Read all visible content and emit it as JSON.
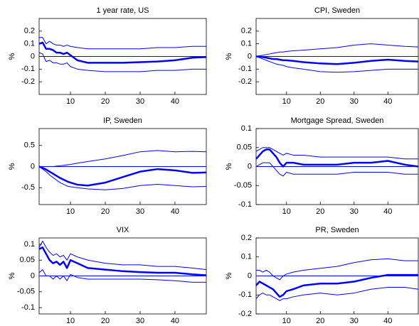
{
  "chart_data": [
    {
      "type": "line",
      "title": "1 year rate, US",
      "ylabel": "%",
      "x": [
        1,
        2,
        3,
        4,
        5,
        6,
        7,
        8,
        9,
        10,
        12,
        15,
        20,
        25,
        30,
        35,
        40,
        45,
        49
      ],
      "series": [
        {
          "color": "#0000ff",
          "linewidth": 2.5,
          "values": [
            0.1,
            0.11,
            0.06,
            0.06,
            0.05,
            0.03,
            0.03,
            0.02,
            0.03,
            0.01,
            -0.03,
            -0.05,
            -0.05,
            -0.05,
            -0.045,
            -0.04,
            -0.03,
            -0.01,
            -0.005
          ]
        },
        {
          "color": "#0000ff",
          "linewidth": 1,
          "values": [
            0.15,
            0.15,
            0.1,
            0.12,
            0.1,
            0.09,
            0.09,
            0.08,
            0.09,
            0.08,
            0.07,
            0.06,
            0.06,
            0.06,
            0.06,
            0.07,
            0.07,
            0.08,
            0.08
          ]
        },
        {
          "color": "#0000ff",
          "linewidth": 1,
          "values": [
            0.03,
            0.02,
            -0.04,
            -0.03,
            -0.05,
            -0.05,
            -0.06,
            -0.06,
            -0.05,
            -0.08,
            -0.1,
            -0.11,
            -0.12,
            -0.12,
            -0.12,
            -0.11,
            -0.11,
            -0.1,
            -0.1
          ]
        }
      ],
      "hline": 0,
      "xlim": [
        1,
        49
      ],
      "xticks": [
        10,
        20,
        30,
        40
      ],
      "ylim": [
        -0.3,
        0.3
      ],
      "yticks": [
        -0.2,
        -0.1,
        0,
        0.1,
        0.2
      ]
    },
    {
      "type": "line",
      "title": "CPI, Sweden",
      "ylabel": "%",
      "x": [
        1,
        2,
        3,
        4,
        5,
        6,
        7,
        8,
        9,
        10,
        12,
        15,
        20,
        25,
        30,
        35,
        40,
        45,
        49
      ],
      "series": [
        {
          "color": "#0000ff",
          "linewidth": 2.5,
          "values": [
            0,
            0,
            -0.005,
            -0.01,
            -0.015,
            -0.02,
            -0.02,
            -0.025,
            -0.03,
            -0.03,
            -0.035,
            -0.045,
            -0.055,
            -0.06,
            -0.05,
            -0.035,
            -0.025,
            -0.035,
            -0.04
          ]
        },
        {
          "color": "#0000ff",
          "linewidth": 1,
          "values": [
            0,
            0.005,
            0.01,
            0.015,
            0.02,
            0.025,
            0.03,
            0.035,
            0.035,
            0.04,
            0.045,
            0.05,
            0.06,
            0.07,
            0.09,
            0.1,
            0.09,
            0.08,
            0.075
          ]
        },
        {
          "color": "#0000ff",
          "linewidth": 1,
          "values": [
            0,
            -0.01,
            -0.02,
            -0.03,
            -0.04,
            -0.05,
            -0.06,
            -0.065,
            -0.07,
            -0.08,
            -0.09,
            -0.1,
            -0.12,
            -0.125,
            -0.12,
            -0.11,
            -0.1,
            -0.1,
            -0.1
          ]
        }
      ],
      "hline": 0,
      "xlim": [
        1,
        49
      ],
      "xticks": [
        10,
        20,
        30,
        40
      ],
      "ylim": [
        -0.3,
        0.3
      ],
      "yticks": [
        -0.2,
        -0.1,
        0,
        0.1,
        0.2
      ]
    },
    {
      "type": "line",
      "title": "IP, Sweden",
      "ylabel": "%",
      "x": [
        1,
        2,
        3,
        4,
        5,
        6,
        7,
        8,
        9,
        10,
        12,
        15,
        20,
        25,
        30,
        35,
        40,
        45,
        49
      ],
      "series": [
        {
          "color": "#0000ff",
          "linewidth": 2.5,
          "values": [
            0,
            -0.03,
            -0.07,
            -0.12,
            -0.17,
            -0.22,
            -0.27,
            -0.31,
            -0.35,
            -0.38,
            -0.43,
            -0.45,
            -0.38,
            -0.25,
            -0.12,
            -0.06,
            -0.09,
            -0.15,
            -0.14
          ]
        },
        {
          "color": "#0000ff",
          "linewidth": 1,
          "values": [
            0,
            0,
            0,
            0,
            0,
            0.01,
            0.02,
            0.03,
            0.04,
            0.05,
            0.08,
            0.12,
            0.18,
            0.26,
            0.35,
            0.38,
            0.35,
            0.36,
            0.35
          ]
        },
        {
          "color": "#0000ff",
          "linewidth": 1,
          "values": [
            0,
            -0.06,
            -0.12,
            -0.2,
            -0.26,
            -0.32,
            -0.38,
            -0.42,
            -0.46,
            -0.48,
            -0.5,
            -0.53,
            -0.55,
            -0.52,
            -0.45,
            -0.42,
            -0.45,
            -0.48,
            -0.47
          ]
        }
      ],
      "hline": 0,
      "xlim": [
        1,
        49
      ],
      "xticks": [
        10,
        20,
        30,
        40
      ],
      "ylim": [
        -0.9,
        0.9
      ],
      "yticks": [
        -0.5,
        0,
        0.5
      ]
    },
    {
      "type": "line",
      "title": "Mortgage Spread, Sweden",
      "ylabel": "%",
      "x": [
        1,
        2,
        3,
        4,
        5,
        6,
        7,
        8,
        9,
        10,
        12,
        15,
        20,
        25,
        30,
        35,
        40,
        45,
        49
      ],
      "series": [
        {
          "color": "#0000ff",
          "linewidth": 2.5,
          "values": [
            0.02,
            0.03,
            0.04,
            0.045,
            0.045,
            0.035,
            0.025,
            0.01,
            0,
            0.01,
            0.01,
            0.005,
            0.005,
            0.005,
            0.01,
            0.01,
            0.015,
            0.005,
            0
          ]
        },
        {
          "color": "#0000ff",
          "linewidth": 1,
          "values": [
            0.04,
            0.045,
            0.05,
            0.05,
            0.05,
            0.045,
            0.04,
            0.035,
            0.03,
            0.035,
            0.03,
            0.03,
            0.025,
            0.025,
            0.025,
            0.025,
            0.025,
            0.02,
            0.02
          ]
        },
        {
          "color": "#0000ff",
          "linewidth": 1,
          "values": [
            0,
            0.005,
            0.01,
            0.01,
            0.01,
            0,
            -0.01,
            -0.02,
            -0.025,
            -0.015,
            -0.02,
            -0.02,
            -0.02,
            -0.02,
            -0.015,
            -0.015,
            -0.015,
            -0.02,
            -0.02
          ]
        }
      ],
      "hline": 0,
      "xlim": [
        1,
        49
      ],
      "xticks": [
        10,
        20,
        30,
        40
      ],
      "ylim": [
        -0.1,
        0.1
      ],
      "yticks": [
        -0.1,
        -0.05,
        0,
        0.05,
        0.1
      ]
    },
    {
      "type": "line",
      "title": "VIX",
      "ylabel": "%",
      "x": [
        1,
        2,
        3,
        4,
        5,
        6,
        7,
        8,
        9,
        10,
        12,
        15,
        20,
        25,
        30,
        35,
        40,
        45,
        49
      ],
      "series": [
        {
          "color": "#0000ff",
          "linewidth": 2.5,
          "values": [
            0.085,
            0.09,
            0.07,
            0.05,
            0.04,
            0.045,
            0.035,
            0.045,
            0.025,
            0.05,
            0.04,
            0.025,
            0.02,
            0.015,
            0.012,
            0.01,
            0.01,
            0.005,
            0.002
          ]
        },
        {
          "color": "#0000ff",
          "linewidth": 1,
          "values": [
            0.09,
            0.11,
            0.09,
            0.075,
            0.065,
            0.07,
            0.06,
            0.065,
            0.05,
            0.07,
            0.06,
            0.05,
            0.04,
            0.035,
            0.035,
            0.03,
            0.03,
            0.025,
            0.02
          ]
        },
        {
          "color": "#0000ff",
          "linewidth": 1,
          "values": [
            0.01,
            0.02,
            0,
            0,
            -0.01,
            0,
            -0.01,
            0,
            -0.015,
            0.005,
            -0.005,
            -0.01,
            -0.01,
            -0.01,
            -0.01,
            -0.012,
            -0.015,
            -0.02,
            -0.02
          ]
        }
      ],
      "hline": 0,
      "xlim": [
        1,
        49
      ],
      "xticks": [
        10,
        20,
        30,
        40
      ],
      "ylim": [
        -0.12,
        0.12
      ],
      "yticks": [
        -0.1,
        -0.05,
        0,
        0.05,
        0.1
      ]
    },
    {
      "type": "line",
      "title": "PR, Sweden",
      "ylabel": "%",
      "x": [
        1,
        2,
        3,
        4,
        5,
        6,
        7,
        8,
        9,
        10,
        12,
        15,
        20,
        25,
        30,
        35,
        40,
        45,
        49
      ],
      "series": [
        {
          "color": "#0000ff",
          "linewidth": 2.5,
          "values": [
            -0.05,
            -0.03,
            -0.04,
            -0.05,
            -0.06,
            -0.07,
            -0.09,
            -0.11,
            -0.1,
            -0.08,
            -0.07,
            -0.05,
            -0.04,
            -0.04,
            -0.03,
            -0.01,
            0.005,
            0.005,
            0.005
          ]
        },
        {
          "color": "#0000ff",
          "linewidth": 1,
          "values": [
            0.03,
            0.03,
            0.02,
            0.03,
            0.02,
            0,
            -0.01,
            -0.02,
            0,
            0.01,
            0.02,
            0.03,
            0.04,
            0.05,
            0.07,
            0.085,
            0.09,
            0.08,
            0.08
          ]
        },
        {
          "color": "#0000ff",
          "linewidth": 1,
          "values": [
            -0.12,
            -0.1,
            -0.09,
            -0.1,
            -0.1,
            -0.11,
            -0.12,
            -0.13,
            -0.12,
            -0.12,
            -0.11,
            -0.1,
            -0.09,
            -0.1,
            -0.09,
            -0.07,
            -0.06,
            -0.06,
            -0.07
          ]
        }
      ],
      "hline": 0,
      "xlim": [
        1,
        49
      ],
      "xticks": [
        10,
        20,
        30,
        40
      ],
      "ylim": [
        -0.2,
        0.2
      ],
      "yticks": [
        -0.2,
        -0.1,
        0,
        0.1,
        0.2
      ]
    }
  ]
}
